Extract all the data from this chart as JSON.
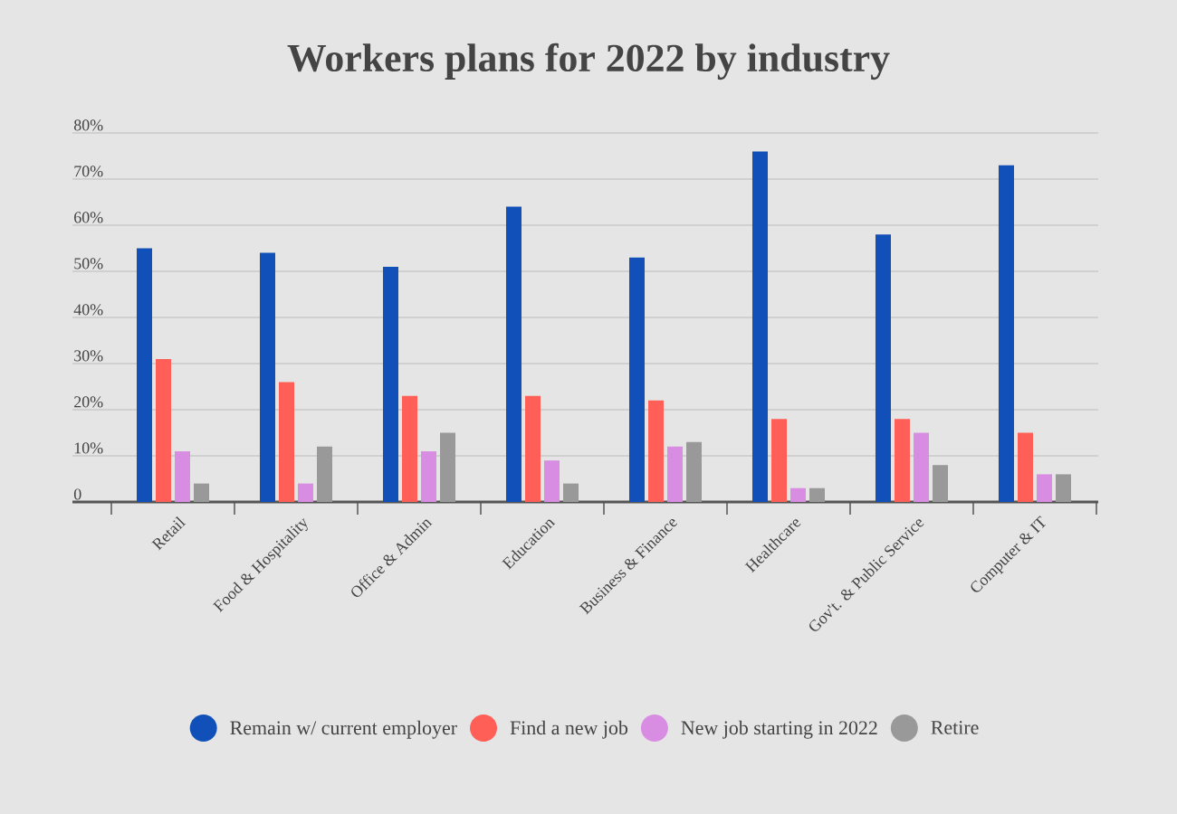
{
  "chart_data": {
    "type": "bar",
    "title": "Workers plans for 2022 by industry",
    "categories": [
      "Retail",
      "Food & Hospitality",
      "Office & Admin",
      "Education",
      "Business & Finance",
      "Healthcare",
      "Gov't. & Public Service",
      "Computer & IT"
    ],
    "series": [
      {
        "name": "Remain w/ current employer",
        "color": "#1150b8",
        "values": [
          55,
          54,
          51,
          64,
          53,
          76,
          58,
          73
        ]
      },
      {
        "name": "Find a new job",
        "color": "#ff5f57",
        "values": [
          31,
          26,
          23,
          23,
          22,
          18,
          18,
          15
        ]
      },
      {
        "name": "New job starting in 2022",
        "color": "#d88de3",
        "values": [
          11,
          4,
          11,
          9,
          12,
          3,
          15,
          6
        ]
      },
      {
        "name": "Retire",
        "color": "#999999",
        "values": [
          4,
          12,
          15,
          4,
          13,
          3,
          8,
          6
        ]
      }
    ],
    "ylim": [
      0,
      80
    ],
    "yticks": [
      0,
      {
        "value": 10,
        "label": "10%"
      },
      {
        "value": 20,
        "label": "20%"
      },
      {
        "value": 30,
        "label": "30%"
      },
      {
        "value": 40,
        "label": "40%"
      },
      {
        "value": 50,
        "label": "50%"
      },
      {
        "value": 60,
        "label": "60%"
      },
      {
        "value": 70,
        "label": "70%"
      },
      {
        "value": 80,
        "label": "80%"
      }
    ],
    "grid": "y",
    "legend": "bottom"
  }
}
